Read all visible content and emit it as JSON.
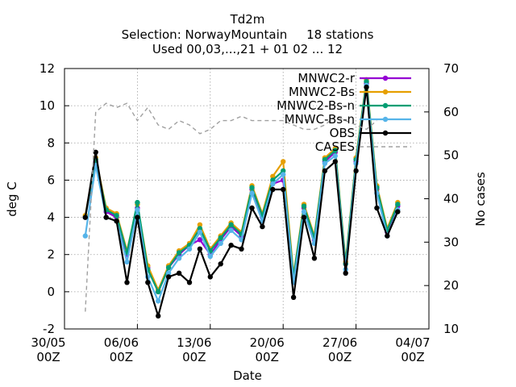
{
  "chart_data": {
    "type": "line",
    "title": "Td2m",
    "subtitle_1": "Selection: NorwayMountain     18 stations",
    "subtitle_2": "Used 00,03,...,21 + 01 02 ... 12",
    "xlabel": "Date",
    "ylabel": "deg C",
    "y2label": "No cases",
    "ylim": [
      -2,
      12
    ],
    "y2lim": [
      10,
      70
    ],
    "xlim": [
      "2022-05-30",
      "2022-07-04"
    ],
    "yticks": [
      "-2",
      "0",
      "2",
      "4",
      "6",
      "8",
      "10",
      "12"
    ],
    "y2ticks": [
      "10",
      "20",
      "30",
      "40",
      "50",
      "60",
      "70"
    ],
    "xticks": [
      {
        "line1": "30/05",
        "line2": "00Z"
      },
      {
        "line1": "06/06",
        "line2": "00Z"
      },
      {
        "line1": "13/06",
        "line2": "00Z"
      },
      {
        "line1": "20/06",
        "line2": "00Z"
      },
      {
        "line1": "27/06",
        "line2": "00Z"
      },
      {
        "line1": "04/07",
        "line2": "00Z"
      }
    ],
    "grid": true,
    "legend_position": "top-right",
    "series": [
      {
        "name": "MNWC2-r",
        "color": "#9400d3",
        "axis": "left",
        "x": [
          "2022-06-01",
          "2022-06-02",
          "2022-06-03",
          "2022-06-04",
          "2022-06-05",
          "2022-06-06",
          "2022-06-07",
          "2022-06-08",
          "2022-06-09",
          "2022-06-10",
          "2022-06-11",
          "2022-06-12",
          "2022-06-13",
          "2022-06-14",
          "2022-06-15",
          "2022-06-16",
          "2022-06-17",
          "2022-06-18",
          "2022-06-19",
          "2022-06-20",
          "2022-06-21",
          "2022-06-22",
          "2022-06-23",
          "2022-06-24",
          "2022-06-25",
          "2022-06-26",
          "2022-06-27",
          "2022-06-28",
          "2022-06-29",
          "2022-06-30",
          "2022-07-01"
        ],
        "y": [
          4.0,
          7.0,
          4.3,
          4.0,
          2.0,
          4.5,
          1.3,
          0.0,
          1.3,
          2.0,
          2.5,
          2.8,
          2.0,
          2.8,
          3.5,
          3.0,
          5.5,
          4.0,
          5.8,
          6.0,
          0.8,
          4.5,
          2.8,
          7.0,
          7.5,
          1.5,
          7.0,
          11.2,
          5.5,
          3.2,
          4.6
        ]
      },
      {
        "name": "MNWC2-Bs",
        "color": "#e69f00",
        "axis": "left",
        "x": [
          "2022-06-01",
          "2022-06-02",
          "2022-06-03",
          "2022-06-04",
          "2022-06-05",
          "2022-06-06",
          "2022-06-07",
          "2022-06-08",
          "2022-06-09",
          "2022-06-10",
          "2022-06-11",
          "2022-06-12",
          "2022-06-13",
          "2022-06-14",
          "2022-06-15",
          "2022-06-16",
          "2022-06-17",
          "2022-06-18",
          "2022-06-19",
          "2022-06-20",
          "2022-06-21",
          "2022-06-22",
          "2022-06-23",
          "2022-06-24",
          "2022-06-25",
          "2022-06-26",
          "2022-06-27",
          "2022-06-28",
          "2022-06-29",
          "2022-06-30",
          "2022-07-01"
        ],
        "y": [
          4.1,
          7.2,
          4.5,
          4.2,
          2.2,
          4.7,
          1.4,
          0.1,
          1.4,
          2.2,
          2.6,
          3.6,
          2.3,
          3.0,
          3.7,
          3.2,
          5.7,
          4.2,
          6.2,
          7.0,
          0.9,
          4.7,
          3.0,
          7.2,
          7.7,
          1.6,
          7.2,
          11.4,
          5.7,
          3.4,
          4.8
        ]
      },
      {
        "name": "MNWC2-Bs-n",
        "color": "#009e73",
        "axis": "left",
        "x": [
          "2022-06-01",
          "2022-06-02",
          "2022-06-03",
          "2022-06-04",
          "2022-06-05",
          "2022-06-06",
          "2022-06-07",
          "2022-06-08",
          "2022-06-09",
          "2022-06-10",
          "2022-06-11",
          "2022-06-12",
          "2022-06-13",
          "2022-06-14",
          "2022-06-15",
          "2022-06-16",
          "2022-06-17",
          "2022-06-18",
          "2022-06-19",
          "2022-06-20",
          "2022-06-21",
          "2022-06-22",
          "2022-06-23",
          "2022-06-24",
          "2022-06-25",
          "2022-06-26",
          "2022-06-27",
          "2022-06-28",
          "2022-06-29",
          "2022-06-30",
          "2022-07-01"
        ],
        "y": [
          4.0,
          7.1,
          4.4,
          4.1,
          2.1,
          4.8,
          1.2,
          0.0,
          1.3,
          2.1,
          2.5,
          3.4,
          2.2,
          2.9,
          3.6,
          3.1,
          5.6,
          4.1,
          6.0,
          6.5,
          0.8,
          4.6,
          2.9,
          7.1,
          7.6,
          1.5,
          7.1,
          11.3,
          5.6,
          3.3,
          4.7
        ]
      },
      {
        "name": "MNWC-Bs-n",
        "color": "#56b4e9",
        "axis": "left",
        "x": [
          "2022-06-01",
          "2022-06-02",
          "2022-06-03",
          "2022-06-04",
          "2022-06-05",
          "2022-06-06",
          "2022-06-07",
          "2022-06-08",
          "2022-06-09",
          "2022-06-10",
          "2022-06-11",
          "2022-06-12",
          "2022-06-13",
          "2022-06-14",
          "2022-06-15",
          "2022-06-16",
          "2022-06-17",
          "2022-06-18",
          "2022-06-19",
          "2022-06-20",
          "2022-06-21",
          "2022-06-22",
          "2022-06-23",
          "2022-06-24",
          "2022-06-25",
          "2022-06-26",
          "2022-06-27",
          "2022-06-28",
          "2022-06-29",
          "2022-06-30",
          "2022-07-01"
        ],
        "y": [
          3.0,
          6.8,
          4.0,
          3.8,
          1.6,
          4.4,
          0.8,
          -0.5,
          1.0,
          1.8,
          2.3,
          3.2,
          1.9,
          2.6,
          3.3,
          2.8,
          5.3,
          3.8,
          5.8,
          6.3,
          0.5,
          4.3,
          2.6,
          6.9,
          7.3,
          1.2,
          6.9,
          11.1,
          5.3,
          3.0,
          4.4
        ]
      },
      {
        "name": "OBS",
        "color": "#000000",
        "axis": "left",
        "x": [
          "2022-06-01",
          "2022-06-02",
          "2022-06-03",
          "2022-06-04",
          "2022-06-05",
          "2022-06-06",
          "2022-06-07",
          "2022-06-08",
          "2022-06-09",
          "2022-06-10",
          "2022-06-11",
          "2022-06-12",
          "2022-06-13",
          "2022-06-14",
          "2022-06-15",
          "2022-06-16",
          "2022-06-17",
          "2022-06-18",
          "2022-06-19",
          "2022-06-20",
          "2022-06-21",
          "2022-06-22",
          "2022-06-23",
          "2022-06-24",
          "2022-06-25",
          "2022-06-26",
          "2022-06-27",
          "2022-06-28",
          "2022-06-29",
          "2022-06-30",
          "2022-07-01"
        ],
        "y": [
          4.0,
          7.5,
          4.0,
          3.8,
          0.5,
          4.0,
          0.5,
          -1.3,
          0.8,
          1.0,
          0.5,
          2.3,
          0.8,
          1.5,
          2.5,
          2.3,
          4.5,
          3.5,
          5.5,
          5.5,
          -0.3,
          4.0,
          1.8,
          6.5,
          7.0,
          1.0,
          6.5,
          11.0,
          4.5,
          3.0,
          4.3
        ]
      },
      {
        "name": "CASES",
        "color": "#a0a0a0",
        "axis": "right",
        "dashed": true,
        "x": [
          "2022-06-01",
          "2022-06-02",
          "2022-06-03",
          "2022-06-04",
          "2022-06-05",
          "2022-06-06",
          "2022-06-07",
          "2022-06-08",
          "2022-06-09",
          "2022-06-10",
          "2022-06-11",
          "2022-06-12",
          "2022-06-13",
          "2022-06-14",
          "2022-06-15",
          "2022-06-16",
          "2022-06-17",
          "2022-06-18",
          "2022-06-19",
          "2022-06-20",
          "2022-06-21",
          "2022-06-22",
          "2022-06-23",
          "2022-06-24",
          "2022-06-25",
          "2022-06-26",
          "2022-06-27",
          "2022-06-28",
          "2022-06-29"
        ],
        "y": [
          14,
          60,
          62,
          61,
          62,
          58,
          61,
          57,
          56,
          58,
          57,
          55,
          56,
          58,
          58,
          59,
          58,
          58,
          58,
          58,
          57,
          56,
          56,
          57,
          59,
          58,
          57,
          56,
          58
        ]
      }
    ]
  }
}
